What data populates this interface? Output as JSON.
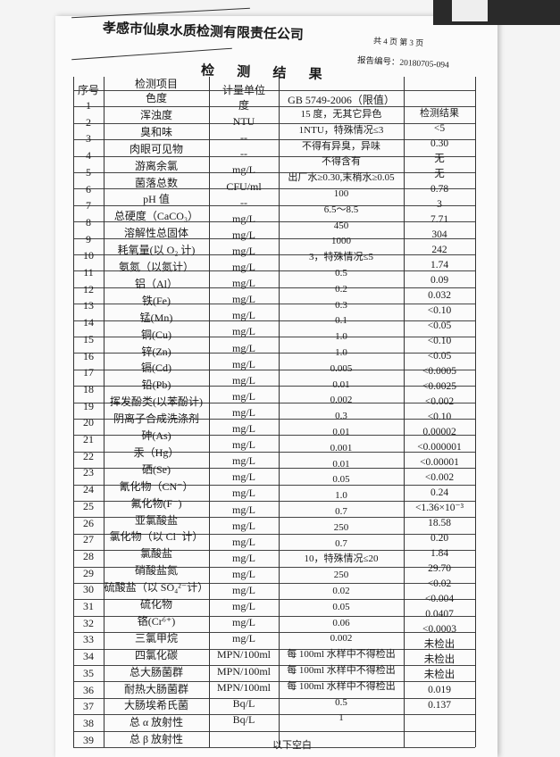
{
  "header": {
    "company": "孝感市仙泉水质检测有限责任公司",
    "pages": "共 4 页  第 3 页",
    "report_no": "报告编号：20180705-094",
    "title": "检 测 结 果"
  },
  "table": {
    "headers": {
      "seq": "序号",
      "item": "检测项目",
      "unit": "计量单位",
      "limit": "GB 5749-2006（限值）",
      "result": "检测结果"
    },
    "seq": [
      "1",
      "2",
      "3",
      "4",
      "5",
      "6",
      "7",
      "8",
      "9",
      "10",
      "11",
      "12",
      "13",
      "14",
      "15",
      "16",
      "17",
      "18",
      "19",
      "20",
      "21",
      "22",
      "23",
      "24",
      "25",
      "26",
      "27",
      "28",
      "29",
      "30",
      "31",
      "32",
      "33",
      "34",
      "35",
      "36",
      "37",
      "38",
      "39"
    ],
    "items": [
      "色度",
      "浑浊度",
      "臭和味",
      "肉眼可见物",
      "游离余氯",
      "菌落总数",
      "pH 值",
      "总硬度（CaCO₃）",
      "溶解性总固体",
      "耗氧量(以 O₂ 计)",
      "氨氮（以氮计）",
      "铝（Al）",
      "铁(Fe)",
      "锰(Mn)",
      "铜(Cu)",
      "锌(Zn)",
      "镉(Cd)",
      "铅(Pb)",
      "挥发酚类(以苯酚计)",
      "阴离子合成洗涤剂",
      "砷(As)",
      "汞（Hg）",
      "硒(Se)",
      "氰化物（CN⁻）",
      "氟化物(F⁻)",
      "亚氯酸盐",
      "氯化物（以 Cl⁻计）",
      "氯酸盐",
      "硝酸盐氮",
      "硫酸盐（以 SO₄²⁻计）",
      "硫化物",
      "铬(Cr⁶⁺)",
      "三氯甲烷",
      "四氯化碳",
      "总大肠菌群",
      "耐热大肠菌群",
      "大肠埃希氏菌",
      "总 α 放射性",
      "总 β 放射性"
    ],
    "units": [
      "度",
      "NTU",
      "--",
      "--",
      "mg/L",
      "CFU/ml",
      "--",
      "mg/L",
      "mg/L",
      "mg/L",
      "mg/L",
      "mg/L",
      "mg/L",
      "mg/L",
      "mg/L",
      "mg/L",
      "mg/L",
      "mg/L",
      "mg/L",
      "mg/L",
      "mg/L",
      "mg/L",
      "mg/L",
      "mg/L",
      "mg/L",
      "mg/L",
      "mg/L",
      "mg/L",
      "mg/L",
      "mg/L",
      "mg/L",
      "mg/L",
      "mg/L",
      "mg/L",
      "MPN/100ml",
      "MPN/100ml",
      "MPN/100ml",
      "Bq/L",
      "Bq/L"
    ],
    "limits": [
      "15 度，无其它异色",
      "1NTU，特殊情况≤3",
      "不得有异臭，异味",
      "不得含有",
      "出厂水≥0.30,末梢水≥0.05",
      "100",
      "6.5～8.5",
      "450",
      "1000",
      "3，特殊情况≤5",
      "0.5",
      "0.2",
      "0.3",
      "0.1",
      "1.0",
      "1.0",
      "0.005",
      "0.01",
      "0.002",
      "0.3",
      "0.01",
      "0.001",
      "0.01",
      "0.05",
      "1.0",
      "0.7",
      "250",
      "0.7",
      "10，特殊情况≤20",
      "250",
      "0.02",
      "0.05",
      "0.06",
      "0.002",
      "每 100ml 水样中不得检出",
      "每 100ml 水样中不得检出",
      "每 100ml 水样中不得检出",
      "0.5",
      "1"
    ],
    "results": [
      "<5",
      "0.30",
      "无",
      "无",
      "0.78",
      "3",
      "7.71",
      "304",
      "242",
      "1.74",
      "0.09",
      "0.032",
      "<0.10",
      "<0.05",
      "<0.10",
      "<0.05",
      "<0.0005",
      "<0.0025",
      "<0.002",
      "<0.10",
      "0.00002",
      "<0.000001",
      "<0.00001",
      "<0.002",
      "0.24",
      "<1.36×10⁻³",
      "18.58",
      "0.20",
      "1.84",
      "29.70",
      "<0.02",
      "<0.004",
      "0.0407",
      "<0.0003",
      "未检出",
      "未检出",
      "未检出",
      "0.019",
      "0.137"
    ]
  },
  "footer": "以下空白"
}
